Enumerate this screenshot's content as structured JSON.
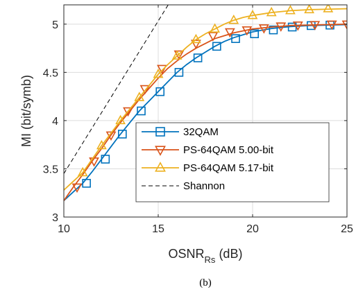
{
  "chart_data": {
    "type": "line",
    "caption": "(b)",
    "xlabel": {
      "main": "OSNR",
      "sub": "Rs",
      "unit": "(dB)"
    },
    "ylabel": "MI (bit/symb)",
    "xlim": [
      10,
      25
    ],
    "ylim": [
      3,
      5.2
    ],
    "xticks": [
      10,
      15,
      20,
      25
    ],
    "yticks": [
      3,
      3.5,
      4,
      4.5,
      5
    ],
    "xtick_labels": [
      "10",
      "15",
      "20",
      "25"
    ],
    "ytick_labels": [
      "3",
      "3.5",
      "4",
      "4.5",
      "5"
    ],
    "grid": true,
    "legend_position": "lower-right",
    "series": [
      {
        "name": "32QAM",
        "color": "#0072BD",
        "marker": "square",
        "curve_x": [
          10,
          10.5,
          11,
          11.5,
          12,
          12.5,
          13,
          13.5,
          14,
          14.5,
          15,
          15.5,
          16,
          16.5,
          17,
          17.5,
          18,
          18.5,
          19,
          19.5,
          20,
          21,
          22,
          23,
          24,
          25
        ],
        "curve_y": [
          3.17,
          3.26,
          3.35,
          3.47,
          3.6,
          3.73,
          3.86,
          3.98,
          4.1,
          4.2,
          4.3,
          4.4,
          4.5,
          4.58,
          4.65,
          4.71,
          4.77,
          4.82,
          4.86,
          4.89,
          4.92,
          4.955,
          4.975,
          4.985,
          4.99,
          4.995
        ],
        "marker_x": [
          11.2,
          12.2,
          13.1,
          14.1,
          15.1,
          16.1,
          17.1,
          18.1,
          19.1,
          20.1,
          21.1,
          22.1,
          23.1,
          24.1
        ],
        "marker_y": [
          3.35,
          3.6,
          3.86,
          4.1,
          4.3,
          4.5,
          4.65,
          4.77,
          4.85,
          4.9,
          4.94,
          4.97,
          4.985,
          4.99
        ]
      },
      {
        "name": "PS-64QAM 5.00-bit",
        "color": "#D95319",
        "marker": "triangle-down",
        "curve_x": [
          10,
          10.5,
          11,
          11.5,
          12,
          12.5,
          13,
          13.5,
          14,
          14.5,
          15,
          15.5,
          16,
          16.5,
          17,
          17.5,
          18,
          18.5,
          19,
          19.5,
          20,
          21,
          22,
          23,
          24,
          25
        ],
        "curve_y": [
          3.17,
          3.31,
          3.44,
          3.58,
          3.71,
          3.85,
          3.98,
          4.1,
          4.22,
          4.33,
          4.44,
          4.54,
          4.62,
          4.69,
          4.75,
          4.8,
          4.85,
          4.88,
          4.91,
          4.93,
          4.95,
          4.97,
          4.985,
          4.99,
          4.995,
          5.0
        ],
        "marker_x": [
          10.7,
          11.6,
          12.5,
          13.4,
          14.3,
          15.2,
          16.1,
          17.0,
          17.9,
          18.8,
          19.7,
          20.6,
          21.5,
          22.4,
          23.3,
          24.2,
          25.0
        ],
        "marker_y": [
          3.31,
          3.58,
          3.85,
          4.1,
          4.33,
          4.54,
          4.69,
          4.8,
          4.88,
          4.92,
          4.94,
          4.96,
          4.98,
          4.99,
          4.995,
          5.0,
          5.0
        ]
      },
      {
        "name": "PS-64QAM 5.17-bit",
        "color": "#EDB120",
        "marker": "triangle-up",
        "curve_x": [
          10,
          10.5,
          11,
          11.5,
          12,
          12.5,
          13,
          13.5,
          14,
          14.5,
          15,
          15.5,
          16,
          16.5,
          17,
          17.5,
          18,
          18.5,
          19,
          19.5,
          20,
          21,
          22,
          23,
          24,
          25
        ],
        "curve_y": [
          3.28,
          3.37,
          3.46,
          3.6,
          3.74,
          3.87,
          4.0,
          4.12,
          4.24,
          4.36,
          4.48,
          4.58,
          4.67,
          4.76,
          4.84,
          4.9,
          4.95,
          5.0,
          5.04,
          5.07,
          5.09,
          5.12,
          5.14,
          5.15,
          5.155,
          5.16
        ],
        "marker_x": [
          11,
          12,
          13,
          14,
          15,
          16,
          17,
          18,
          19,
          20,
          21,
          22,
          23,
          24
        ],
        "marker_y": [
          3.46,
          3.74,
          4.0,
          4.24,
          4.48,
          4.67,
          4.84,
          4.95,
          5.04,
          5.09,
          5.12,
          5.14,
          5.15,
          5.16
        ]
      },
      {
        "name": "Shannon",
        "color": "#000000",
        "marker": "none",
        "dashed": true,
        "curve_x": [
          10,
          16
        ],
        "curve_y": [
          3.45,
          5.35
        ]
      }
    ]
  }
}
